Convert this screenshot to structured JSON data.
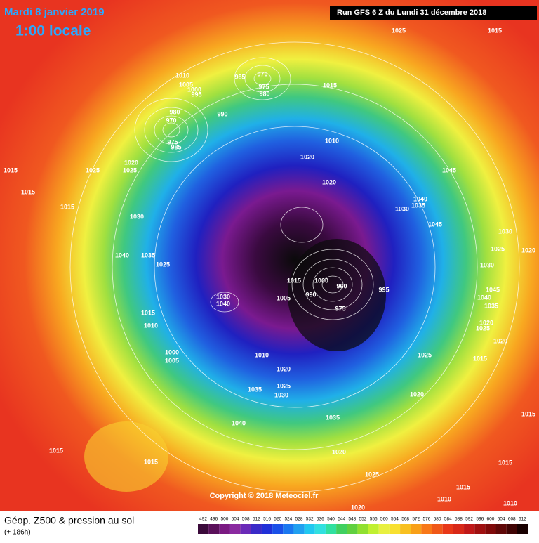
{
  "header": {
    "date": "Mardi 8 janvier 2019",
    "time": "1:00 locale",
    "run": "Run GFS 6 Z du Lundi 31 décembre 2018"
  },
  "map": {
    "pressure_labels": [
      "1015",
      "1025",
      "1010",
      "1005",
      "1000",
      "995",
      "985",
      "970",
      "975",
      "980",
      "1015",
      "990",
      "980",
      "970",
      "975",
      "985",
      "1010",
      "1020",
      "1020",
      "1045",
      "1020",
      "1025",
      "1025",
      "1015",
      "1015",
      "1015",
      "1030",
      "1040",
      "1035",
      "1030",
      "1045",
      "1030",
      "1025",
      "1020",
      "1040",
      "1035",
      "1025",
      "1030",
      "1015",
      "1000",
      "960",
      "995",
      "990",
      "975",
      "1005",
      "1040",
      "1030",
      "1045",
      "1040",
      "1035",
      "1015",
      "1010",
      "1020",
      "1025",
      "1020",
      "1000",
      "1005",
      "1010",
      "1025",
      "1015",
      "1020",
      "1035",
      "1025",
      "1030",
      "1020",
      "1040",
      "1015",
      "1015",
      "1035",
      "1015",
      "1020",
      "1025",
      "1015",
      "1015",
      "1010",
      "1010",
      "1020"
    ],
    "copyright": "Copyright © 2018 Meteociel.fr"
  },
  "footer": {
    "title": "Géop. Z500 & pression au sol",
    "lead": "(+ 186h)",
    "scale": {
      "labels": [
        492,
        496,
        500,
        504,
        508,
        512,
        516,
        520,
        524,
        528,
        532,
        536,
        540,
        544,
        548,
        552,
        556,
        560,
        564,
        568,
        572,
        576,
        580,
        584,
        588,
        592,
        596,
        600,
        604,
        608,
        612
      ],
      "colors": [
        "#3a0a3a",
        "#5a105a",
        "#7a1a82",
        "#8a2aa0",
        "#6a2ab8",
        "#3a2ac8",
        "#2030d8",
        "#1a50e8",
        "#1a78f0",
        "#20a0f0",
        "#20c8f0",
        "#30e0e0",
        "#30e0a0",
        "#40d060",
        "#60d040",
        "#90e030",
        "#c0f030",
        "#e8f040",
        "#f8e030",
        "#f8c020",
        "#f8a018",
        "#f87818",
        "#f05818",
        "#e83818",
        "#d82818",
        "#c01818",
        "#a01010",
        "#800a0a",
        "#600808",
        "#400404",
        "#180000"
      ]
    }
  }
}
